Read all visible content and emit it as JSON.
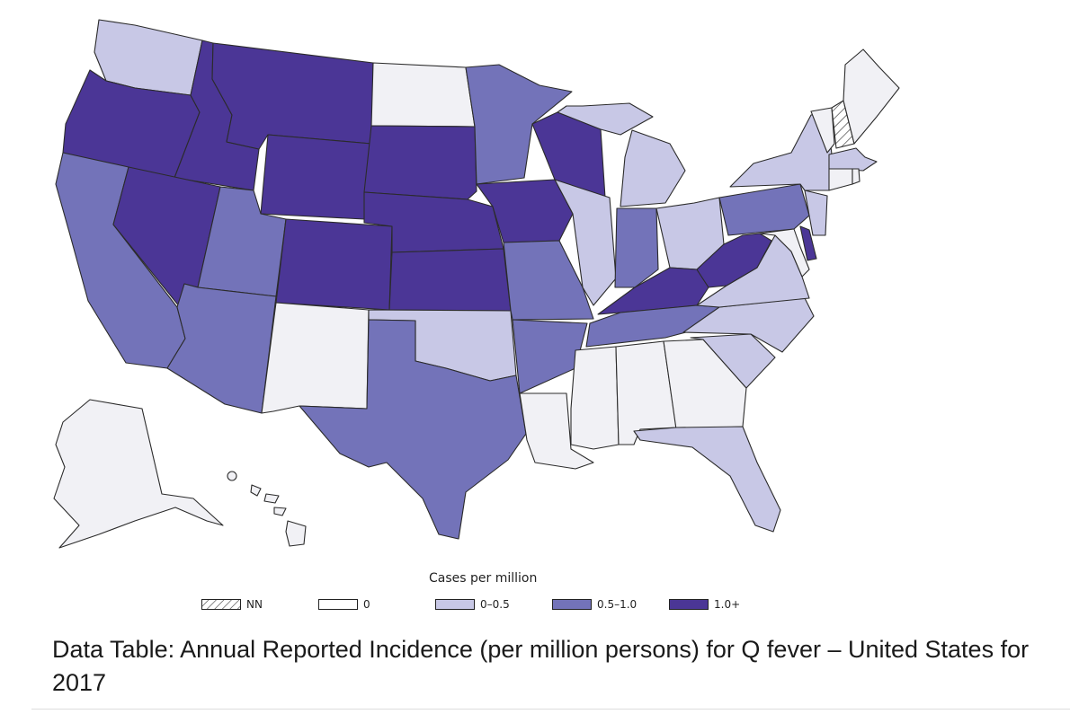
{
  "legend": {
    "title": "Cases per million",
    "items": [
      {
        "label": "NN",
        "color": "#ffffff",
        "hatched": true
      },
      {
        "label": "0",
        "color": "#ffffff"
      },
      {
        "label": "0–0.5",
        "color": "#c8c8e6"
      },
      {
        "label": "0.5–1.0",
        "color": "#7373b9"
      },
      {
        "label": "1.0+",
        "color": "#4b3696"
      }
    ]
  },
  "caption": "Data Table: Annual Reported Incidence (per million persons) for Q fever – United States for 2017",
  "colors": {
    "nn": "#ffffff",
    "zero": "#f1f1f5",
    "low": "#c8c8e6",
    "mid": "#7373b9",
    "high": "#4b3696",
    "outline": "#2b2b2b"
  },
  "map": {
    "states": [
      {
        "id": "WA",
        "category": "low"
      },
      {
        "id": "OR",
        "category": "high"
      },
      {
        "id": "CA",
        "category": "mid"
      },
      {
        "id": "ID",
        "category": "high"
      },
      {
        "id": "NV",
        "category": "high"
      },
      {
        "id": "MT",
        "category": "high"
      },
      {
        "id": "WY",
        "category": "high"
      },
      {
        "id": "UT",
        "category": "mid"
      },
      {
        "id": "AZ",
        "category": "mid"
      },
      {
        "id": "CO",
        "category": "high"
      },
      {
        "id": "NM",
        "category": "zero"
      },
      {
        "id": "ND",
        "category": "zero"
      },
      {
        "id": "SD",
        "category": "high"
      },
      {
        "id": "NE",
        "category": "high"
      },
      {
        "id": "KS",
        "category": "high"
      },
      {
        "id": "OK",
        "category": "low"
      },
      {
        "id": "TX",
        "category": "mid"
      },
      {
        "id": "MN",
        "category": "mid"
      },
      {
        "id": "IA",
        "category": "high"
      },
      {
        "id": "MO",
        "category": "mid"
      },
      {
        "id": "AR",
        "category": "mid"
      },
      {
        "id": "LA",
        "category": "zero"
      },
      {
        "id": "WI",
        "category": "high"
      },
      {
        "id": "IL",
        "category": "low"
      },
      {
        "id": "MI",
        "category": "low"
      },
      {
        "id": "IN",
        "category": "mid"
      },
      {
        "id": "OH",
        "category": "low"
      },
      {
        "id": "KY",
        "category": "high"
      },
      {
        "id": "TN",
        "category": "mid"
      },
      {
        "id": "MS",
        "category": "zero"
      },
      {
        "id": "AL",
        "category": "zero"
      },
      {
        "id": "GA",
        "category": "zero"
      },
      {
        "id": "FL",
        "category": "low"
      },
      {
        "id": "SC",
        "category": "low"
      },
      {
        "id": "NC",
        "category": "low"
      },
      {
        "id": "VA",
        "category": "low"
      },
      {
        "id": "WV",
        "category": "high"
      },
      {
        "id": "PA",
        "category": "mid"
      },
      {
        "id": "NY",
        "category": "low"
      },
      {
        "id": "NJ",
        "category": "low"
      },
      {
        "id": "DE",
        "category": "high"
      },
      {
        "id": "MD",
        "category": "zero"
      },
      {
        "id": "CT",
        "category": "zero"
      },
      {
        "id": "RI",
        "category": "zero"
      },
      {
        "id": "MA",
        "category": "low"
      },
      {
        "id": "VT",
        "category": "zero"
      },
      {
        "id": "NH",
        "category": "nn"
      },
      {
        "id": "ME",
        "category": "zero"
      },
      {
        "id": "AK",
        "category": "zero"
      },
      {
        "id": "HI",
        "category": "zero"
      }
    ]
  }
}
